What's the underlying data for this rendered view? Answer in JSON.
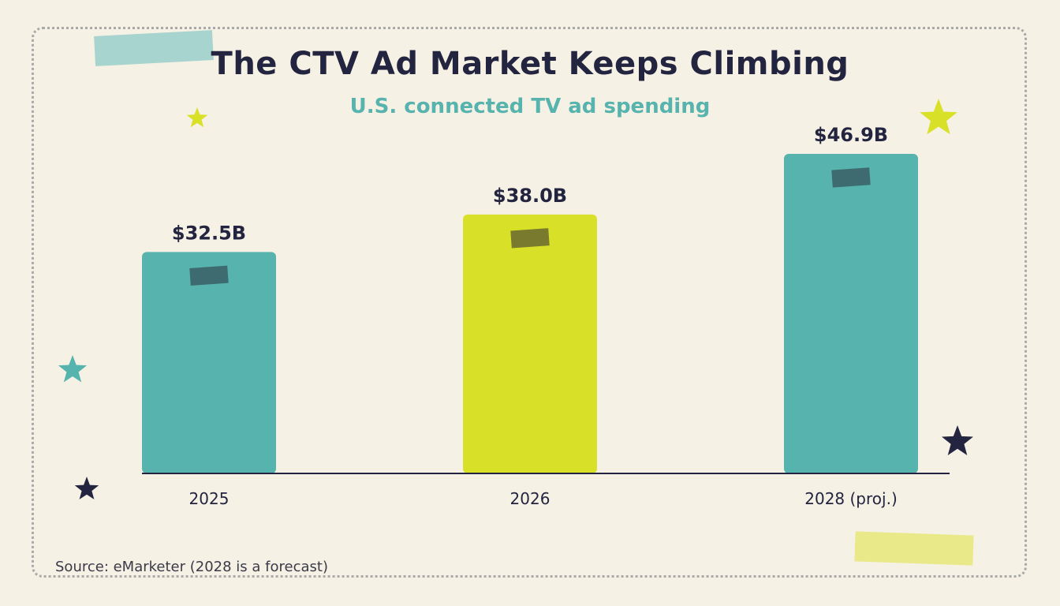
{
  "title": "The CTV Ad Market Keeps Climbing",
  "subtitle": "U.S. connected TV ad spending",
  "source": "Source: eMarketer (2028 is a forecast)",
  "colors": {
    "background": "#f6f1e5",
    "teal": "#57b3ad",
    "lime": "#d8e027",
    "navy": "#23243f"
  },
  "chart_data": {
    "type": "bar",
    "categories": [
      "2025",
      "2026",
      "2028 (proj.)"
    ],
    "values": [
      32.5,
      38.0,
      46.9
    ],
    "data_labels": [
      "$32.5B",
      "$38.0B",
      "$46.9B"
    ],
    "bar_colors": [
      "#57b3ad",
      "#d8e027",
      "#57b3ad"
    ],
    "title": "The CTV Ad Market Keeps Climbing",
    "subtitle": "U.S. connected TV ad spending",
    "ylim": [
      0,
      55
    ],
    "grid": false,
    "legend": "none"
  },
  "decorations": {
    "stars": [
      "lime-star",
      "lime-star",
      "teal-star",
      "navy-star",
      "navy-star"
    ]
  }
}
